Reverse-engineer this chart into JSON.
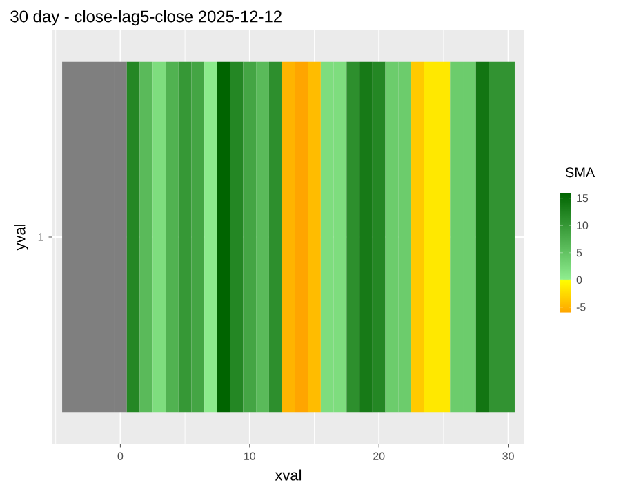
{
  "chart_data": {
    "type": "heatmap",
    "title": "30 day - close-lag5-close 2025-12-12",
    "xlabel": "xval",
    "ylabel": "yval",
    "clabel": "SMA",
    "x": [
      -4,
      -3,
      -2,
      -1,
      0,
      1,
      2,
      3,
      4,
      5,
      6,
      7,
      8,
      9,
      10,
      11,
      12,
      13,
      14,
      15,
      16,
      17,
      18,
      19,
      20,
      21,
      22,
      23,
      24,
      25,
      26,
      27,
      28,
      29,
      30
    ],
    "y_categories": [
      "1"
    ],
    "cells": [
      [
        null,
        null,
        null,
        null,
        null,
        12,
        6,
        2,
        7,
        10,
        8.5,
        0.5,
        16,
        12,
        8.5,
        6,
        11,
        -5,
        -6,
        -4.5,
        2,
        2,
        11,
        13.5,
        12,
        4,
        4,
        -3.5,
        -1.5,
        -1.5,
        4,
        4,
        14,
        10.5,
        10.5
      ]
    ],
    "xlim": [
      -5.25,
      31.25
    ],
    "xticks": [
      0,
      10,
      20,
      30
    ],
    "clim": [
      -6,
      16
    ],
    "cticks": [
      -5,
      0,
      5,
      10,
      15
    ],
    "grid": true
  }
}
